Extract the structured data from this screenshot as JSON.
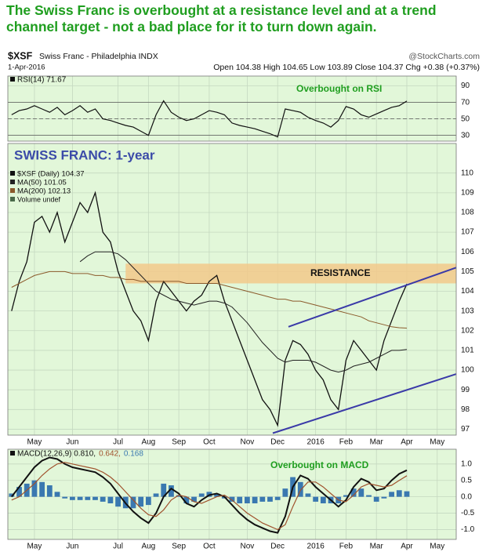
{
  "title": "The Swiss Franc is overbought at a resistance level and at a trend channel target - not a bad place for it to turn down again.",
  "header": {
    "symbol": "$XSF",
    "name": "Swiss Franc - Philadelphia INDX",
    "source": "@StockCharts.com",
    "date": "1-Apr-2016",
    "quote": "Open 104.38  High 104.65  Low 103.89  Close 104.37  Chg +0.38 (+0.37%)"
  },
  "chart_data": [
    {
      "type": "line",
      "annotation": "Overbought on RSI",
      "ylim": [
        23,
        102
      ],
      "yticks": [
        30,
        50,
        70,
        90
      ],
      "grid": true,
      "reference_lines": [
        30,
        50,
        70
      ],
      "series": [
        {
          "name": "RSI(14) 71.67",
          "color": "#111111",
          "values": [
            55,
            60,
            62,
            66,
            62,
            58,
            64,
            55,
            60,
            66,
            58,
            62,
            50,
            48,
            45,
            42,
            40,
            35,
            30,
            55,
            72,
            58,
            52,
            48,
            50,
            55,
            60,
            58,
            55,
            45,
            42,
            40,
            38,
            35,
            32,
            28,
            62,
            60,
            58,
            52,
            48,
            45,
            40,
            48,
            65,
            62,
            55,
            52,
            56,
            60,
            64,
            66,
            71.67,
            null,
            null,
            null,
            null,
            null,
            null
          ]
        }
      ]
    },
    {
      "type": "line",
      "subtitle": "SWISS FRANC: 1-year",
      "annotation": "RESISTANCE",
      "categories": [
        null,
        null,
        null,
        "May",
        null,
        null,
        null,
        null,
        "Jun",
        null,
        null,
        null,
        null,
        null,
        "Jul",
        null,
        null,
        null,
        "Aug",
        null,
        null,
        null,
        "Sep",
        null,
        null,
        null,
        "Oct",
        null,
        null,
        null,
        null,
        "Nov",
        null,
        null,
        null,
        "Dec",
        null,
        null,
        null,
        null,
        "2016",
        null,
        null,
        null,
        "Feb",
        null,
        null,
        null,
        "Mar",
        null,
        null,
        null,
        "Apr",
        null,
        null,
        null,
        "May",
        null,
        null
      ],
      "ylim": [
        96.7,
        111.5
      ],
      "yticks": [
        97,
        98,
        99,
        100,
        101,
        102,
        103,
        104,
        105,
        106,
        107,
        108,
        109,
        110
      ],
      "grid": true,
      "resistance_band": [
        104.4,
        105.4
      ],
      "trend_lines": [
        {
          "values": [
            102.2,
            105.2
          ]
        },
        {
          "values": [
            96.8,
            99.8
          ]
        }
      ],
      "volume_label": "Volume undef",
      "series": [
        {
          "name": "$XSF (Daily) 104.37",
          "color": "#111111",
          "width": 1.3,
          "values": [
            103.0,
            104.5,
            105.5,
            107.5,
            107.8,
            107.0,
            108.0,
            106.5,
            107.5,
            108.5,
            108.0,
            109.0,
            107.0,
            106.5,
            105.0,
            104.0,
            103.0,
            102.5,
            101.5,
            103.5,
            104.5,
            104.0,
            103.5,
            103.0,
            103.5,
            103.8,
            104.5,
            104.8,
            103.5,
            102.5,
            101.5,
            100.5,
            99.5,
            98.5,
            98.0,
            97.2,
            100.5,
            101.5,
            101.3,
            100.8,
            100.0,
            99.5,
            98.5,
            98.0,
            100.5,
            101.5,
            101.0,
            100.5,
            100.0,
            101.5,
            102.5,
            103.5,
            104.37,
            null,
            null,
            null,
            null,
            null,
            null
          ]
        },
        {
          "name": "MA(50) 101.05",
          "color": "#222222",
          "width": 1,
          "values": [
            null,
            null,
            null,
            null,
            null,
            null,
            null,
            null,
            null,
            105.5,
            105.8,
            106.0,
            106.0,
            106.0,
            105.9,
            105.6,
            105.2,
            104.8,
            104.4,
            104.0,
            103.8,
            103.6,
            103.5,
            103.4,
            103.3,
            103.4,
            103.5,
            103.5,
            103.4,
            103.2,
            102.8,
            102.4,
            101.9,
            101.4,
            101.0,
            100.6,
            100.4,
            100.5,
            100.5,
            100.5,
            100.4,
            100.2,
            100.0,
            99.9,
            100.0,
            100.2,
            100.3,
            100.4,
            100.6,
            100.8,
            101.0,
            101.0,
            101.05,
            null,
            null,
            null,
            null,
            null,
            null
          ]
        },
        {
          "name": "MA(200) 102.13",
          "color": "#8b5a2b",
          "width": 1,
          "values": [
            104.2,
            104.4,
            104.6,
            104.8,
            104.9,
            105.0,
            105.0,
            105.0,
            104.9,
            104.9,
            104.9,
            104.8,
            104.8,
            104.7,
            104.7,
            104.6,
            104.6,
            104.5,
            104.5,
            104.5,
            104.5,
            104.5,
            104.5,
            104.4,
            104.4,
            104.4,
            104.4,
            104.4,
            104.3,
            104.2,
            104.1,
            104.0,
            103.9,
            103.8,
            103.7,
            103.6,
            103.6,
            103.5,
            103.5,
            103.4,
            103.3,
            103.2,
            103.1,
            103.0,
            102.9,
            102.8,
            102.7,
            102.5,
            102.4,
            102.3,
            102.2,
            102.15,
            102.13,
            null,
            null,
            null,
            null,
            null,
            null
          ]
        }
      ]
    },
    {
      "type": "line",
      "annotation": "Overbought on MACD",
      "categories": [
        null,
        null,
        null,
        "May",
        null,
        null,
        null,
        null,
        "Jun",
        null,
        null,
        null,
        null,
        null,
        "Jul",
        null,
        null,
        null,
        "Aug",
        null,
        null,
        null,
        "Sep",
        null,
        null,
        null,
        "Oct",
        null,
        null,
        null,
        null,
        "Nov",
        null,
        null,
        null,
        "Dec",
        null,
        null,
        null,
        null,
        "2016",
        null,
        null,
        null,
        "Feb",
        null,
        null,
        null,
        "Mar",
        null,
        null,
        null,
        "Apr",
        null,
        null,
        null,
        "May",
        null,
        null
      ],
      "ylim": [
        -1.3,
        1.45
      ],
      "yticks": [
        {
          "value": -1,
          "label": "-1.0"
        },
        {
          "value": -0.5,
          "label": "-0.5"
        },
        {
          "value": 0,
          "label": "0.0"
        },
        {
          "value": 0.5,
          "label": "0.5"
        },
        {
          "value": 1,
          "label": "1.0"
        }
      ],
      "grid": true,
      "series": [
        {
          "name": "0.168",
          "type": "bar",
          "color": "#3a78b0",
          "values": [
            0.1,
            0.3,
            0.4,
            0.5,
            0.45,
            0.35,
            0.15,
            -0.05,
            -0.1,
            -0.1,
            -0.1,
            -0.1,
            -0.15,
            -0.2,
            -0.3,
            -0.35,
            -0.35,
            -0.3,
            -0.25,
            0.1,
            0.4,
            0.35,
            0.05,
            -0.2,
            -0.15,
            0.1,
            0.15,
            0.1,
            -0.05,
            -0.15,
            -0.2,
            -0.2,
            -0.2,
            -0.15,
            -0.15,
            -0.1,
            0.25,
            0.6,
            0.45,
            0.1,
            -0.15,
            -0.2,
            -0.2,
            -0.2,
            0.05,
            0.25,
            0.25,
            0.05,
            -0.15,
            -0.05,
            0.15,
            0.2,
            0.168,
            null,
            null,
            null,
            null,
            null,
            null
          ]
        },
        {
          "name": "MACD(12,26,9) 0.810,",
          "color": "#111111",
          "width": 2,
          "values": [
            0.0,
            0.3,
            0.6,
            0.9,
            1.1,
            1.2,
            1.15,
            1.0,
            0.9,
            0.85,
            0.8,
            0.75,
            0.6,
            0.4,
            0.1,
            -0.2,
            -0.45,
            -0.65,
            -0.8,
            -0.5,
            0.0,
            0.25,
            0.1,
            -0.2,
            -0.3,
            -0.1,
            0.05,
            0.1,
            0.0,
            -0.25,
            -0.5,
            -0.7,
            -0.85,
            -0.95,
            -1.05,
            -1.1,
            -0.6,
            0.3,
            0.65,
            0.55,
            0.3,
            0.1,
            -0.1,
            -0.3,
            -0.1,
            0.3,
            0.55,
            0.45,
            0.2,
            0.25,
            0.5,
            0.7,
            0.81,
            null,
            null,
            null,
            null,
            null,
            null
          ]
        },
        {
          "name": "0.642,",
          "color": "#a0522d",
          "width": 1.2,
          "values": [
            -0.1,
            0.0,
            0.2,
            0.4,
            0.65,
            0.85,
            1.0,
            1.05,
            1.0,
            0.95,
            0.9,
            0.85,
            0.75,
            0.6,
            0.4,
            0.15,
            -0.1,
            -0.35,
            -0.55,
            -0.6,
            -0.4,
            -0.1,
            0.05,
            0.0,
            -0.15,
            -0.2,
            -0.1,
            0.0,
            0.05,
            -0.1,
            -0.3,
            -0.5,
            -0.65,
            -0.8,
            -0.9,
            -1.0,
            -0.85,
            -0.3,
            0.2,
            0.45,
            0.45,
            0.3,
            0.1,
            -0.1,
            -0.15,
            0.05,
            0.3,
            0.4,
            0.35,
            0.3,
            0.35,
            0.5,
            0.642,
            null,
            null,
            null,
            null,
            null,
            null
          ]
        }
      ]
    }
  ]
}
